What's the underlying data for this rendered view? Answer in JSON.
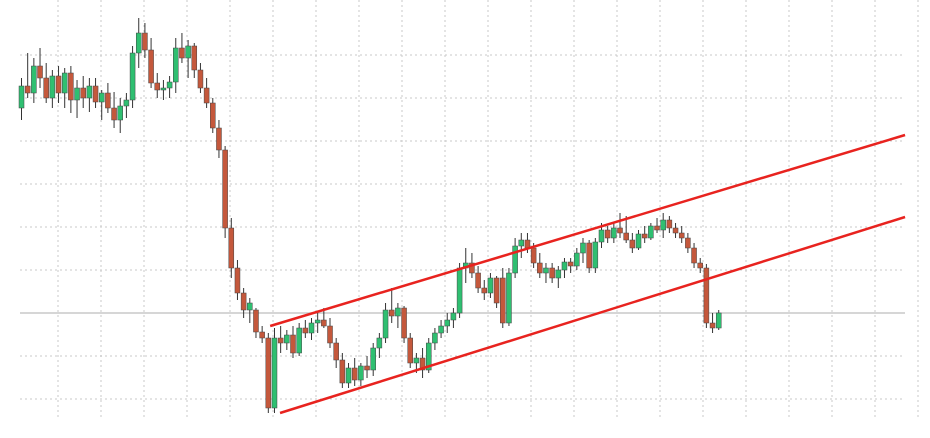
{
  "chart_data": {
    "type": "candlestick",
    "xlim": [
      -3,
      144
    ],
    "ylim": [
      0,
      438
    ],
    "up_color": "#2fbf71",
    "down_color": "#c4583c",
    "wick_color": "#333333",
    "price_line": 125,
    "price_line_color": "#c8c8c8",
    "candles": [
      [
        330,
        360,
        318,
        352
      ],
      [
        352,
        385,
        340,
        345
      ],
      [
        345,
        380,
        335,
        372
      ],
      [
        372,
        390,
        350,
        360
      ],
      [
        360,
        375,
        335,
        340
      ],
      [
        340,
        368,
        330,
        362
      ],
      [
        362,
        372,
        335,
        345
      ],
      [
        345,
        370,
        330,
        365
      ],
      [
        365,
        372,
        325,
        338
      ],
      [
        338,
        358,
        320,
        350
      ],
      [
        350,
        362,
        330,
        340
      ],
      [
        340,
        360,
        326,
        352
      ],
      [
        352,
        360,
        330,
        336
      ],
      [
        336,
        348,
        318,
        345
      ],
      [
        345,
        355,
        325,
        330
      ],
      [
        330,
        346,
        310,
        318
      ],
      [
        318,
        340,
        305,
        332
      ],
      [
        332,
        345,
        320,
        338
      ],
      [
        338,
        392,
        330,
        385
      ],
      [
        385,
        420,
        370,
        405
      ],
      [
        405,
        415,
        380,
        388
      ],
      [
        388,
        400,
        350,
        355
      ],
      [
        355,
        365,
        340,
        348
      ],
      [
        348,
        358,
        338,
        350
      ],
      [
        350,
        362,
        340,
        356
      ],
      [
        356,
        400,
        345,
        390
      ],
      [
        390,
        405,
        375,
        380
      ],
      [
        380,
        398,
        360,
        392
      ],
      [
        392,
        395,
        360,
        368
      ],
      [
        368,
        375,
        345,
        350
      ],
      [
        350,
        360,
        330,
        335
      ],
      [
        335,
        340,
        305,
        310
      ],
      [
        310,
        318,
        280,
        288
      ],
      [
        288,
        292,
        200,
        210
      ],
      [
        210,
        220,
        160,
        170
      ],
      [
        170,
        178,
        138,
        145
      ],
      [
        145,
        150,
        120,
        128
      ],
      [
        128,
        140,
        115,
        135
      ],
      [
        128,
        130,
        100,
        106
      ],
      [
        106,
        112,
        95,
        100
      ],
      [
        100,
        105,
        25,
        30
      ],
      [
        30,
        110,
        25,
        100
      ],
      [
        100,
        112,
        85,
        95
      ],
      [
        95,
        108,
        88,
        103
      ],
      [
        103,
        112,
        80,
        85
      ],
      [
        85,
        115,
        82,
        110
      ],
      [
        110,
        118,
        100,
        105
      ],
      [
        105,
        120,
        98,
        115
      ],
      [
        115,
        125,
        105,
        118
      ],
      [
        118,
        130,
        110,
        112
      ],
      [
        112,
        120,
        90,
        95
      ],
      [
        95,
        100,
        70,
        78
      ],
      [
        78,
        85,
        50,
        55
      ],
      [
        55,
        75,
        50,
        70
      ],
      [
        70,
        80,
        52,
        58
      ],
      [
        58,
        75,
        52,
        72
      ],
      [
        72,
        82,
        60,
        68
      ],
      [
        68,
        95,
        62,
        90
      ],
      [
        90,
        105,
        80,
        100
      ],
      [
        100,
        135,
        95,
        128
      ],
      [
        128,
        150,
        115,
        122
      ],
      [
        122,
        135,
        110,
        130
      ],
      [
        130,
        132,
        95,
        100
      ],
      [
        100,
        105,
        70,
        75
      ],
      [
        75,
        85,
        65,
        80
      ],
      [
        80,
        90,
        60,
        68
      ],
      [
        68,
        100,
        65,
        95
      ],
      [
        95,
        110,
        88,
        105
      ],
      [
        105,
        118,
        100,
        112
      ],
      [
        112,
        125,
        105,
        118
      ],
      [
        118,
        130,
        110,
        125
      ],
      [
        125,
        175,
        120,
        170
      ],
      [
        170,
        190,
        155,
        175
      ],
      [
        175,
        185,
        160,
        165
      ],
      [
        165,
        172,
        145,
        150
      ],
      [
        150,
        158,
        138,
        145
      ],
      [
        145,
        165,
        140,
        160
      ],
      [
        160,
        162,
        130,
        135
      ],
      [
        160,
        170,
        110,
        115
      ],
      [
        115,
        170,
        112,
        165
      ],
      [
        165,
        200,
        160,
        192
      ],
      [
        192,
        205,
        180,
        198
      ],
      [
        198,
        205,
        185,
        190
      ],
      [
        190,
        195,
        170,
        175
      ],
      [
        175,
        185,
        160,
        165
      ],
      [
        165,
        175,
        155,
        170
      ],
      [
        170,
        175,
        155,
        160
      ],
      [
        160,
        172,
        150,
        168
      ],
      [
        168,
        180,
        160,
        176
      ],
      [
        176,
        180,
        165,
        172
      ],
      [
        172,
        190,
        168,
        185
      ],
      [
        185,
        200,
        175,
        195
      ],
      [
        195,
        198,
        165,
        170
      ],
      [
        170,
        200,
        165,
        196
      ],
      [
        196,
        215,
        190,
        208
      ],
      [
        208,
        212,
        195,
        200
      ],
      [
        200,
        215,
        195,
        210
      ],
      [
        210,
        225,
        200,
        205
      ],
      [
        205,
        222,
        195,
        198
      ],
      [
        198,
        205,
        185,
        190
      ],
      [
        190,
        208,
        188,
        204
      ],
      [
        204,
        212,
        195,
        200
      ],
      [
        200,
        215,
        198,
        212
      ],
      [
        212,
        220,
        205,
        208
      ],
      [
        208,
        225,
        200,
        218
      ],
      [
        218,
        222,
        205,
        210
      ],
      [
        210,
        215,
        200,
        205
      ],
      [
        205,
        212,
        195,
        200
      ],
      [
        200,
        205,
        185,
        190
      ],
      [
        190,
        195,
        170,
        175
      ],
      [
        175,
        180,
        165,
        170
      ],
      [
        170,
        174,
        110,
        115
      ],
      [
        115,
        125,
        105,
        110
      ],
      [
        110,
        128,
        108,
        125
      ]
    ],
    "trendlines": [
      {
        "color": "#e8231f",
        "x": [
          40.3,
          143.2
        ],
        "values": [
          112,
          303
        ]
      },
      {
        "color": "#e8231f",
        "x": [
          41.9,
          143.2
        ],
        "values": [
          25,
          221
        ]
      }
    ]
  }
}
